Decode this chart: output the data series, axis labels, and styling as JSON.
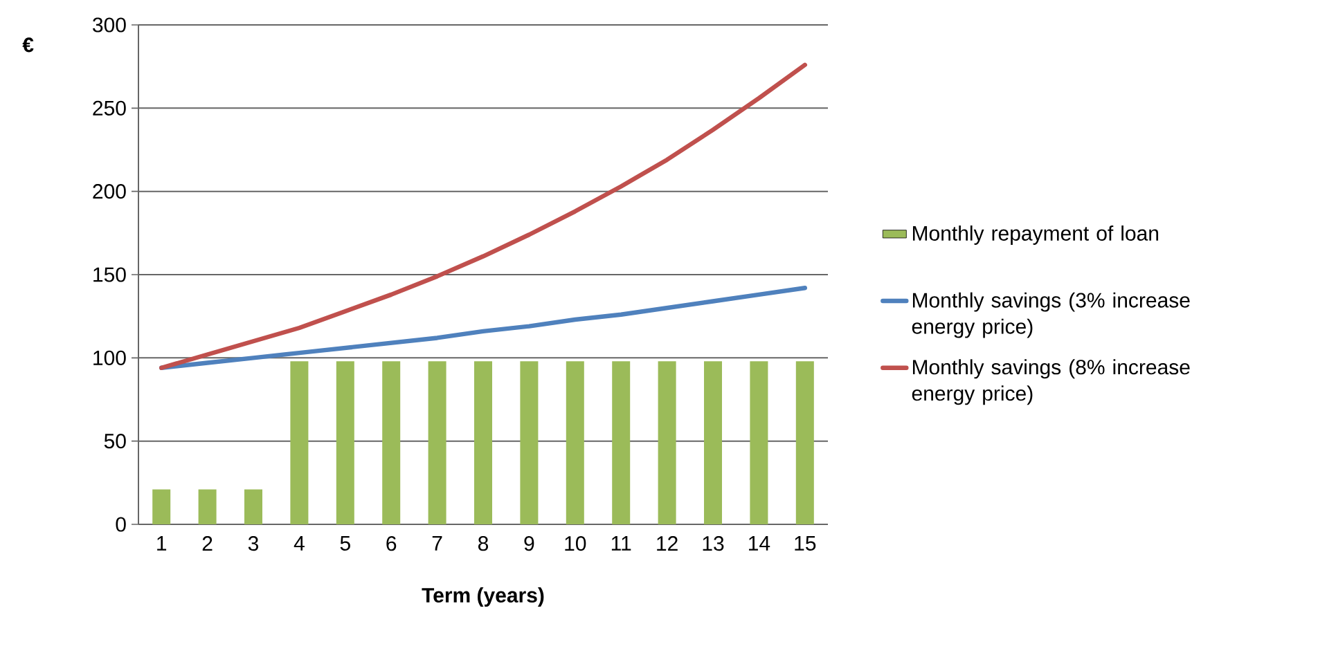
{
  "chart_data": {
    "type": "bar",
    "ylabel": "€",
    "xlabel": "Term (years)",
    "categories": [
      "1",
      "2",
      "3",
      "4",
      "5",
      "6",
      "7",
      "8",
      "9",
      "10",
      "11",
      "12",
      "13",
      "14",
      "15"
    ],
    "series": [
      {
        "name": "Monthly repayment of loan",
        "color": "#9bbb59",
        "values": [
          21,
          21,
          21,
          98,
          98,
          98,
          98,
          98,
          98,
          98,
          98,
          98,
          98,
          98,
          98
        ]
      },
      {
        "name": "Monthly savings (3% increase energy price)",
        "type": "line",
        "color": "#4f81bd",
        "values": [
          94,
          97,
          100,
          103,
          106,
          109,
          112,
          116,
          119,
          123,
          126,
          130,
          134,
          138,
          142
        ]
      },
      {
        "name": "Monthly savings (8% increase energy price)",
        "type": "line",
        "color": "#c0504d",
        "values": [
          94,
          102,
          110,
          118,
          128,
          138,
          149,
          161,
          174,
          188,
          203,
          219,
          237,
          256,
          276
        ]
      }
    ],
    "ylim": [
      0,
      300
    ],
    "yticks": [
      0,
      50,
      100,
      150,
      200,
      250,
      300
    ],
    "grid": "y",
    "legend": "right",
    "marker": "none",
    "line_style": "solid"
  }
}
